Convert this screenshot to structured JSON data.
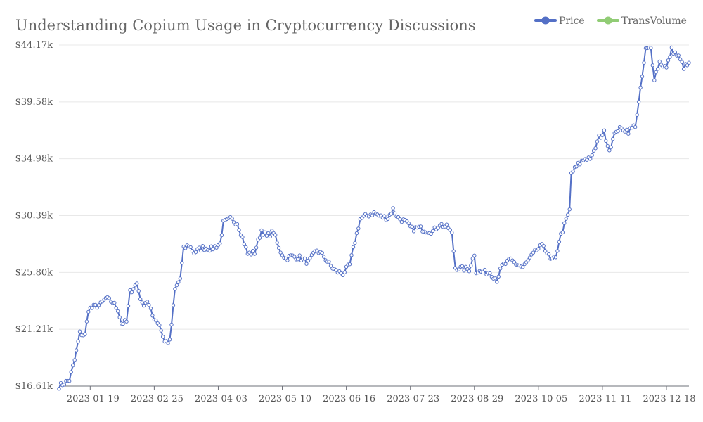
{
  "chart_data": {
    "type": "line",
    "title": "Understanding Copium Usage in Cryptocurrency Discussions",
    "legend": {
      "placement": "top-right",
      "items": [
        {
          "name": "Price",
          "color": "#5470c6"
        },
        {
          "name": "TransVolume",
          "color": "#91cc75"
        }
      ]
    },
    "y_ticks": [
      "$16.61k",
      "$21.21k",
      "$25.80k",
      "$30.39k",
      "$34.98k",
      "$39.58k",
      "$44.17k"
    ],
    "ylim": [
      16610,
      44170
    ],
    "x_ticks": [
      "2023-01-19",
      "2023-02-25",
      "2023-04-03",
      "2023-05-10",
      "2023-06-16",
      "2023-07-23",
      "2023-08-29",
      "2023-10-05",
      "2023-11-11",
      "2023-12-18"
    ],
    "grid": "horizontal",
    "series": [
      {
        "name": "Price",
        "color": "#5470c6",
        "start_date": "2023-01-01",
        "end_date": "2023-12-31",
        "keypoints": [
          [
            "2023-01-01",
            16610
          ],
          [
            "2023-01-04",
            16850
          ],
          [
            "2023-01-07",
            17100
          ],
          [
            "2023-01-10",
            18700
          ],
          [
            "2023-01-13",
            20900
          ],
          [
            "2023-01-16",
            20700
          ],
          [
            "2023-01-18",
            22800
          ],
          [
            "2023-01-21",
            23000
          ],
          [
            "2023-01-25",
            23200
          ],
          [
            "2023-01-28",
            23700
          ],
          [
            "2023-02-01",
            23400
          ],
          [
            "2023-02-04",
            22800
          ],
          [
            "2023-02-06",
            21700
          ],
          [
            "2023-02-09",
            21800
          ],
          [
            "2023-02-11",
            24200
          ],
          [
            "2023-02-15",
            24900
          ],
          [
            "2023-02-18",
            23200
          ],
          [
            "2023-02-21",
            23500
          ],
          [
            "2023-02-24",
            22300
          ],
          [
            "2023-02-28",
            21600
          ],
          [
            "2023-03-03",
            20200
          ],
          [
            "2023-03-06",
            20200
          ],
          [
            "2023-03-09",
            24400
          ],
          [
            "2023-03-12",
            25300
          ],
          [
            "2023-03-14",
            27700
          ],
          [
            "2023-03-17",
            28000
          ],
          [
            "2023-03-20",
            27400
          ],
          [
            "2023-03-25",
            27800
          ],
          [
            "2023-03-30",
            27700
          ],
          [
            "2023-04-04",
            28100
          ],
          [
            "2023-04-06",
            29800
          ],
          [
            "2023-04-10",
            30100
          ],
          [
            "2023-04-14",
            29800
          ],
          [
            "2023-04-17",
            28600
          ],
          [
            "2023-04-20",
            27300
          ],
          [
            "2023-04-24",
            27400
          ],
          [
            "2023-04-28",
            29200
          ],
          [
            "2023-05-01",
            28700
          ],
          [
            "2023-05-05",
            29100
          ],
          [
            "2023-05-08",
            27700
          ],
          [
            "2023-05-12",
            26900
          ],
          [
            "2023-05-15",
            27100
          ],
          [
            "2023-05-20",
            27000
          ],
          [
            "2023-05-25",
            26600
          ],
          [
            "2023-05-30",
            27600
          ],
          [
            "2023-06-03",
            27100
          ],
          [
            "2023-06-07",
            26300
          ],
          [
            "2023-06-10",
            25900
          ],
          [
            "2023-06-14",
            25700
          ],
          [
            "2023-06-18",
            26400
          ],
          [
            "2023-06-21",
            28300
          ],
          [
            "2023-06-24",
            30100
          ],
          [
            "2023-06-28",
            30400
          ],
          [
            "2023-07-02",
            30600
          ],
          [
            "2023-07-06",
            30300
          ],
          [
            "2023-07-10",
            30200
          ],
          [
            "2023-07-13",
            30900
          ],
          [
            "2023-07-16",
            30200
          ],
          [
            "2023-07-20",
            29900
          ],
          [
            "2023-07-24",
            29300
          ],
          [
            "2023-07-28",
            29400
          ],
          [
            "2023-08-01",
            29200
          ],
          [
            "2023-08-05",
            29100
          ],
          [
            "2023-08-09",
            29700
          ],
          [
            "2023-08-14",
            29400
          ],
          [
            "2023-08-16",
            28900
          ],
          [
            "2023-08-18",
            26200
          ],
          [
            "2023-08-22",
            26100
          ],
          [
            "2023-08-26",
            26050
          ],
          [
            "2023-08-29",
            27300
          ],
          [
            "2023-08-30",
            25900
          ],
          [
            "2023-09-03",
            25800
          ],
          [
            "2023-09-07",
            25800
          ],
          [
            "2023-09-11",
            25200
          ],
          [
            "2023-09-14",
            26300
          ],
          [
            "2023-09-19",
            26800
          ],
          [
            "2023-09-22",
            26500
          ],
          [
            "2023-09-26",
            26200
          ],
          [
            "2023-09-30",
            26900
          ],
          [
            "2023-10-04",
            27600
          ],
          [
            "2023-10-08",
            28000
          ],
          [
            "2023-10-12",
            26800
          ],
          [
            "2023-10-15",
            26900
          ],
          [
            "2023-10-17",
            28400
          ],
          [
            "2023-10-20",
            29600
          ],
          [
            "2023-10-23",
            30800
          ],
          [
            "2023-10-24",
            33800
          ],
          [
            "2023-10-28",
            34500
          ],
          [
            "2023-11-01",
            35000
          ],
          [
            "2023-11-05",
            35100
          ],
          [
            "2023-11-09",
            36700
          ],
          [
            "2023-11-12",
            37100
          ],
          [
            "2023-11-15",
            35700
          ],
          [
            "2023-11-19",
            37300
          ],
          [
            "2023-11-23",
            37400
          ],
          [
            "2023-11-26",
            37200
          ],
          [
            "2023-11-30",
            37700
          ],
          [
            "2023-12-02",
            39500
          ],
          [
            "2023-12-04",
            41600
          ],
          [
            "2023-12-06",
            43800
          ],
          [
            "2023-12-09",
            43900
          ],
          [
            "2023-12-11",
            41500
          ],
          [
            "2023-12-14",
            42800
          ],
          [
            "2023-12-18",
            42300
          ],
          [
            "2023-12-21",
            43800
          ],
          [
            "2023-12-25",
            43200
          ],
          [
            "2023-12-28",
            42400
          ],
          [
            "2023-12-31",
            42600
          ]
        ]
      }
    ]
  }
}
